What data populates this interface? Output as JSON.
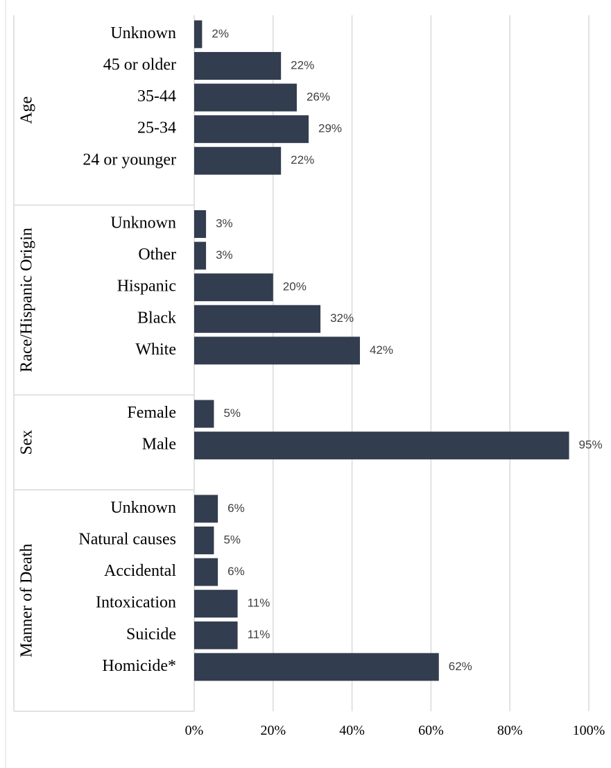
{
  "chart_data": {
    "type": "bar",
    "color": "#323d4f",
    "grid": true,
    "xlim": [
      0,
      100
    ],
    "xticks": [
      {
        "value": 0,
        "label": "0%"
      },
      {
        "value": 20,
        "label": "20%"
      },
      {
        "value": 40,
        "label": "40%"
      },
      {
        "value": 60,
        "label": "60%"
      },
      {
        "value": 80,
        "label": "80%"
      },
      {
        "value": 100,
        "label": "100%"
      }
    ],
    "groups": [
      {
        "name": "Age",
        "categories": [
          "Unknown",
          "45 or older",
          "35-44",
          "25-34",
          "24 or younger"
        ],
        "values": [
          2,
          22,
          26,
          29,
          22
        ],
        "value_labels": [
          "2%",
          "22%",
          "26%",
          "29%",
          "22%"
        ]
      },
      {
        "name": "Race/Hispanic Origin",
        "categories": [
          "Unknown",
          "Other",
          "Hispanic",
          "Black",
          "White"
        ],
        "values": [
          3,
          3,
          20,
          32,
          42
        ],
        "value_labels": [
          "3%",
          "3%",
          "20%",
          "32%",
          "42%"
        ]
      },
      {
        "name": "Sex",
        "categories": [
          "Female",
          "Male"
        ],
        "values": [
          5,
          95
        ],
        "value_labels": [
          "5%",
          "95%"
        ]
      },
      {
        "name": "Manner of Death",
        "categories": [
          "Unknown",
          "Natural causes",
          "Accidental",
          "Intoxication",
          "Suicide",
          "Homicide*"
        ],
        "values": [
          6,
          5,
          6,
          11,
          11,
          62
        ],
        "value_labels": [
          "6%",
          "5%",
          "6%",
          "11%",
          "11%",
          "62%"
        ]
      }
    ]
  }
}
